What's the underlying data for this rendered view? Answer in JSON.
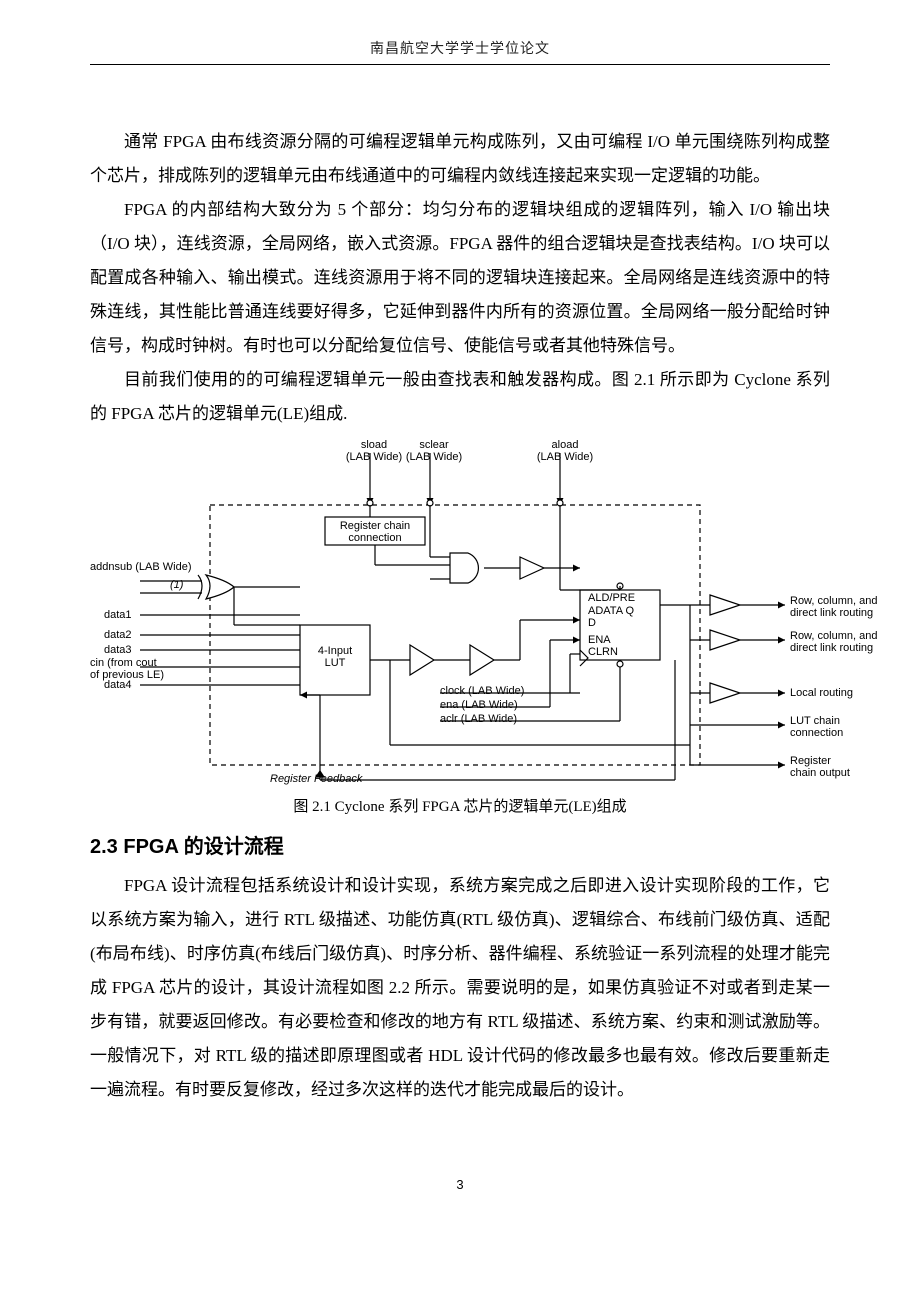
{
  "page": {
    "running_head": "南昌航空大学学士学位论文",
    "page_number": "3"
  },
  "body": {
    "p1": "通常 FPGA 由布线资源分隔的可编程逻辑单元构成陈列，又由可编程 I/O 单元围绕陈列构成整个芯片，排成陈列的逻辑单元由布线通道中的可编程内敛线连接起来实现一定逻辑的功能。",
    "p2": "FPGA 的内部结构大致分为 5 个部分：均匀分布的逻辑块组成的逻辑阵列，输入 I/O 输出块（I/O 块），连线资源，全局网络，嵌入式资源。FPGA 器件的组合逻辑块是查找表结构。I/O 块可以配置成各种输入、输出模式。连线资源用于将不同的逻辑块连接起来。全局网络是连线资源中的特殊连线，其性能比普通连线要好得多，它延伸到器件内所有的资源位置。全局网络一般分配给时钟信号，构成时钟树。有时也可以分配给复位信号、使能信号或者其他特殊信号。",
    "p3": "目前我们使用的的可编程逻辑单元一般由查找表和触发器构成。图 2.1 所示即为 Cyclone 系列的 FPGA 芯片的逻辑单元(LE)组成.",
    "fig_caption": "图 2.1 Cyclone 系列 FPGA 芯片的逻辑单元(LE)组成",
    "h2": "2.3 FPGA 的设计流程",
    "p4": "FPGA 设计流程包括系统设计和设计实现，系统方案完成之后即进入设计实现阶段的工作，它以系统方案为输入，进行 RTL 级描述、功能仿真(RTL 级仿真)、逻辑综合、布线前门级仿真、适配(布局布线)、时序仿真(布线后门级仿真)、时序分析、器件编程、系统验证一系列流程的处理才能完成 FPGA 芯片的设计，其设计流程如图 2.2 所示。需要说明的是，如果仿真验证不对或者到走某一步有错，就要返回修改。有必要检查和修改的地方有 RTL 级描述、系统方案、约束和测试激励等。一般情况下，对 RTL 级的描述即原理图或者 HDL 设计代码的修改最多也最有效。修改后要重新走一遍流程。有时要反复修改，经过多次这样的迭代才能完成最后的设计。"
  },
  "figure": {
    "type": "flowchart",
    "stroke_color": "#000000",
    "fill_color": "#ffffff",
    "stroke_width": 1.2,
    "font_size": 11,
    "font_family": "Helvetica, Arial, sans-serif",
    "labels": {
      "sload": "sload\n(LAB Wide)",
      "sclear": "sclear\n(LAB Wide)",
      "aload": "aload\n(LAB Wide)",
      "reg_chain": "Register chain\nconnection",
      "addnsub": "addnsub (LAB Wide)",
      "note1": "(1)",
      "data1": "data1",
      "data2": "data2",
      "data3": "data3",
      "cin": "cin (from cout\nof previous LE)",
      "data4": "data4",
      "lut": "4-Input\nLUT",
      "clock": "clock (LAB Wide)",
      "ena_w": "ena (LAB Wide)",
      "aclr": "aclr (LAB Wide)",
      "regfb": "Register Feedback",
      "aldpre": "ALD/PRE",
      "adataq": "ADATA   Q",
      "d": "D",
      "ena": "ENA",
      "clrn": "CLRN",
      "out1": "Row, column, and\ndirect link routing",
      "out2": "Row, column, and\ndirect link routing",
      "out3": "Local routing",
      "out4": "LUT chain\nconnection",
      "out5": "Register\nchain output"
    }
  },
  "colors": {
    "text": "#000000",
    "rule": "#000000",
    "background": "#ffffff"
  }
}
